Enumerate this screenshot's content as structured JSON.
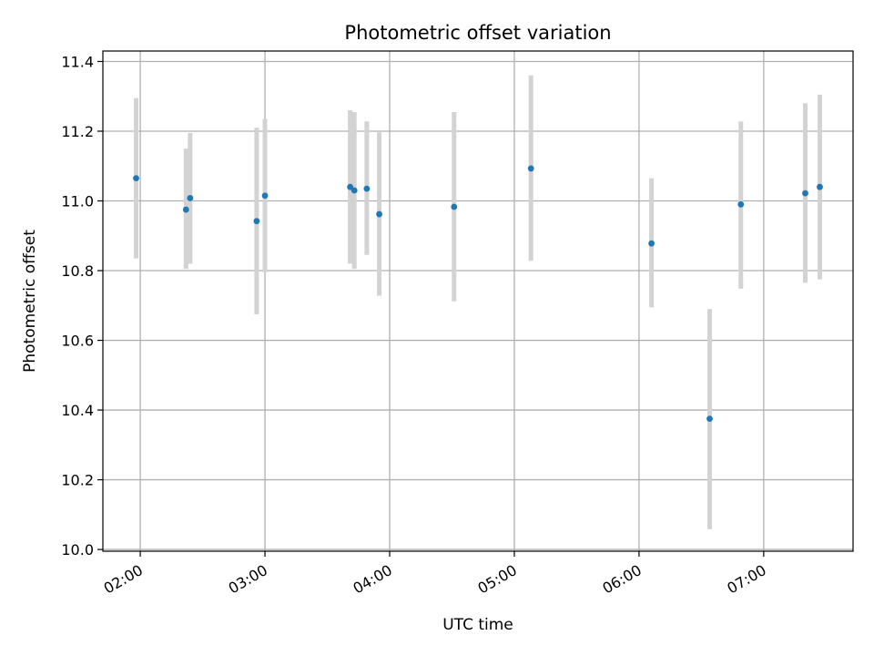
{
  "chart_data": {
    "type": "scatter",
    "title": "Photometric offset variation",
    "xlabel": "UTC time",
    "ylabel": "Photometric offset",
    "x_tick_labels": [
      "02:00",
      "03:00",
      "04:00",
      "05:00",
      "06:00",
      "07:00"
    ],
    "x_ticks": [
      "02:00",
      "03:00",
      "04:00",
      "05:00",
      "06:00",
      "07:00"
    ],
    "y_ticks": [
      10.0,
      10.2,
      10.4,
      10.6,
      10.8,
      11.0,
      11.2,
      11.4
    ],
    "xlim": [
      "01:42",
      "07:43"
    ],
    "ylim": [
      9.995,
      11.43
    ],
    "grid": true,
    "colors": {
      "points": "#1f77b4",
      "errorbars": "#d3d3d3",
      "grid": "#b0b0b0"
    },
    "points": [
      {
        "x": "01:58",
        "y": 11.065,
        "err_low": 10.835,
        "err_high": 11.295
      },
      {
        "x": "02:22",
        "y": 10.975,
        "err_low": 10.805,
        "err_high": 11.15
      },
      {
        "x": "02:24",
        "y": 11.008,
        "err_low": 10.82,
        "err_high": 11.195
      },
      {
        "x": "02:56",
        "y": 10.942,
        "err_low": 10.675,
        "err_high": 11.21
      },
      {
        "x": "03:00",
        "y": 11.015,
        "err_low": 10.795,
        "err_high": 11.235
      },
      {
        "x": "03:41",
        "y": 11.04,
        "err_low": 10.82,
        "err_high": 11.26
      },
      {
        "x": "03:43",
        "y": 11.03,
        "err_low": 10.805,
        "err_high": 11.255
      },
      {
        "x": "03:49",
        "y": 11.035,
        "err_low": 10.845,
        "err_high": 11.228
      },
      {
        "x": "03:55",
        "y": 10.962,
        "err_low": 10.728,
        "err_high": 11.197
      },
      {
        "x": "04:31",
        "y": 10.983,
        "err_low": 10.712,
        "err_high": 11.255
      },
      {
        "x": "05:08",
        "y": 11.093,
        "err_low": 10.828,
        "err_high": 11.36
      },
      {
        "x": "06:06",
        "y": 10.878,
        "err_low": 10.695,
        "err_high": 11.065
      },
      {
        "x": "06:34",
        "y": 10.375,
        "err_low": 10.058,
        "err_high": 10.69
      },
      {
        "x": "06:49",
        "y": 10.99,
        "err_low": 10.748,
        "err_high": 11.228
      },
      {
        "x": "07:20",
        "y": 11.022,
        "err_low": 10.765,
        "err_high": 11.28
      },
      {
        "x": "07:27",
        "y": 11.04,
        "err_low": 10.775,
        "err_high": 11.305
      }
    ]
  }
}
